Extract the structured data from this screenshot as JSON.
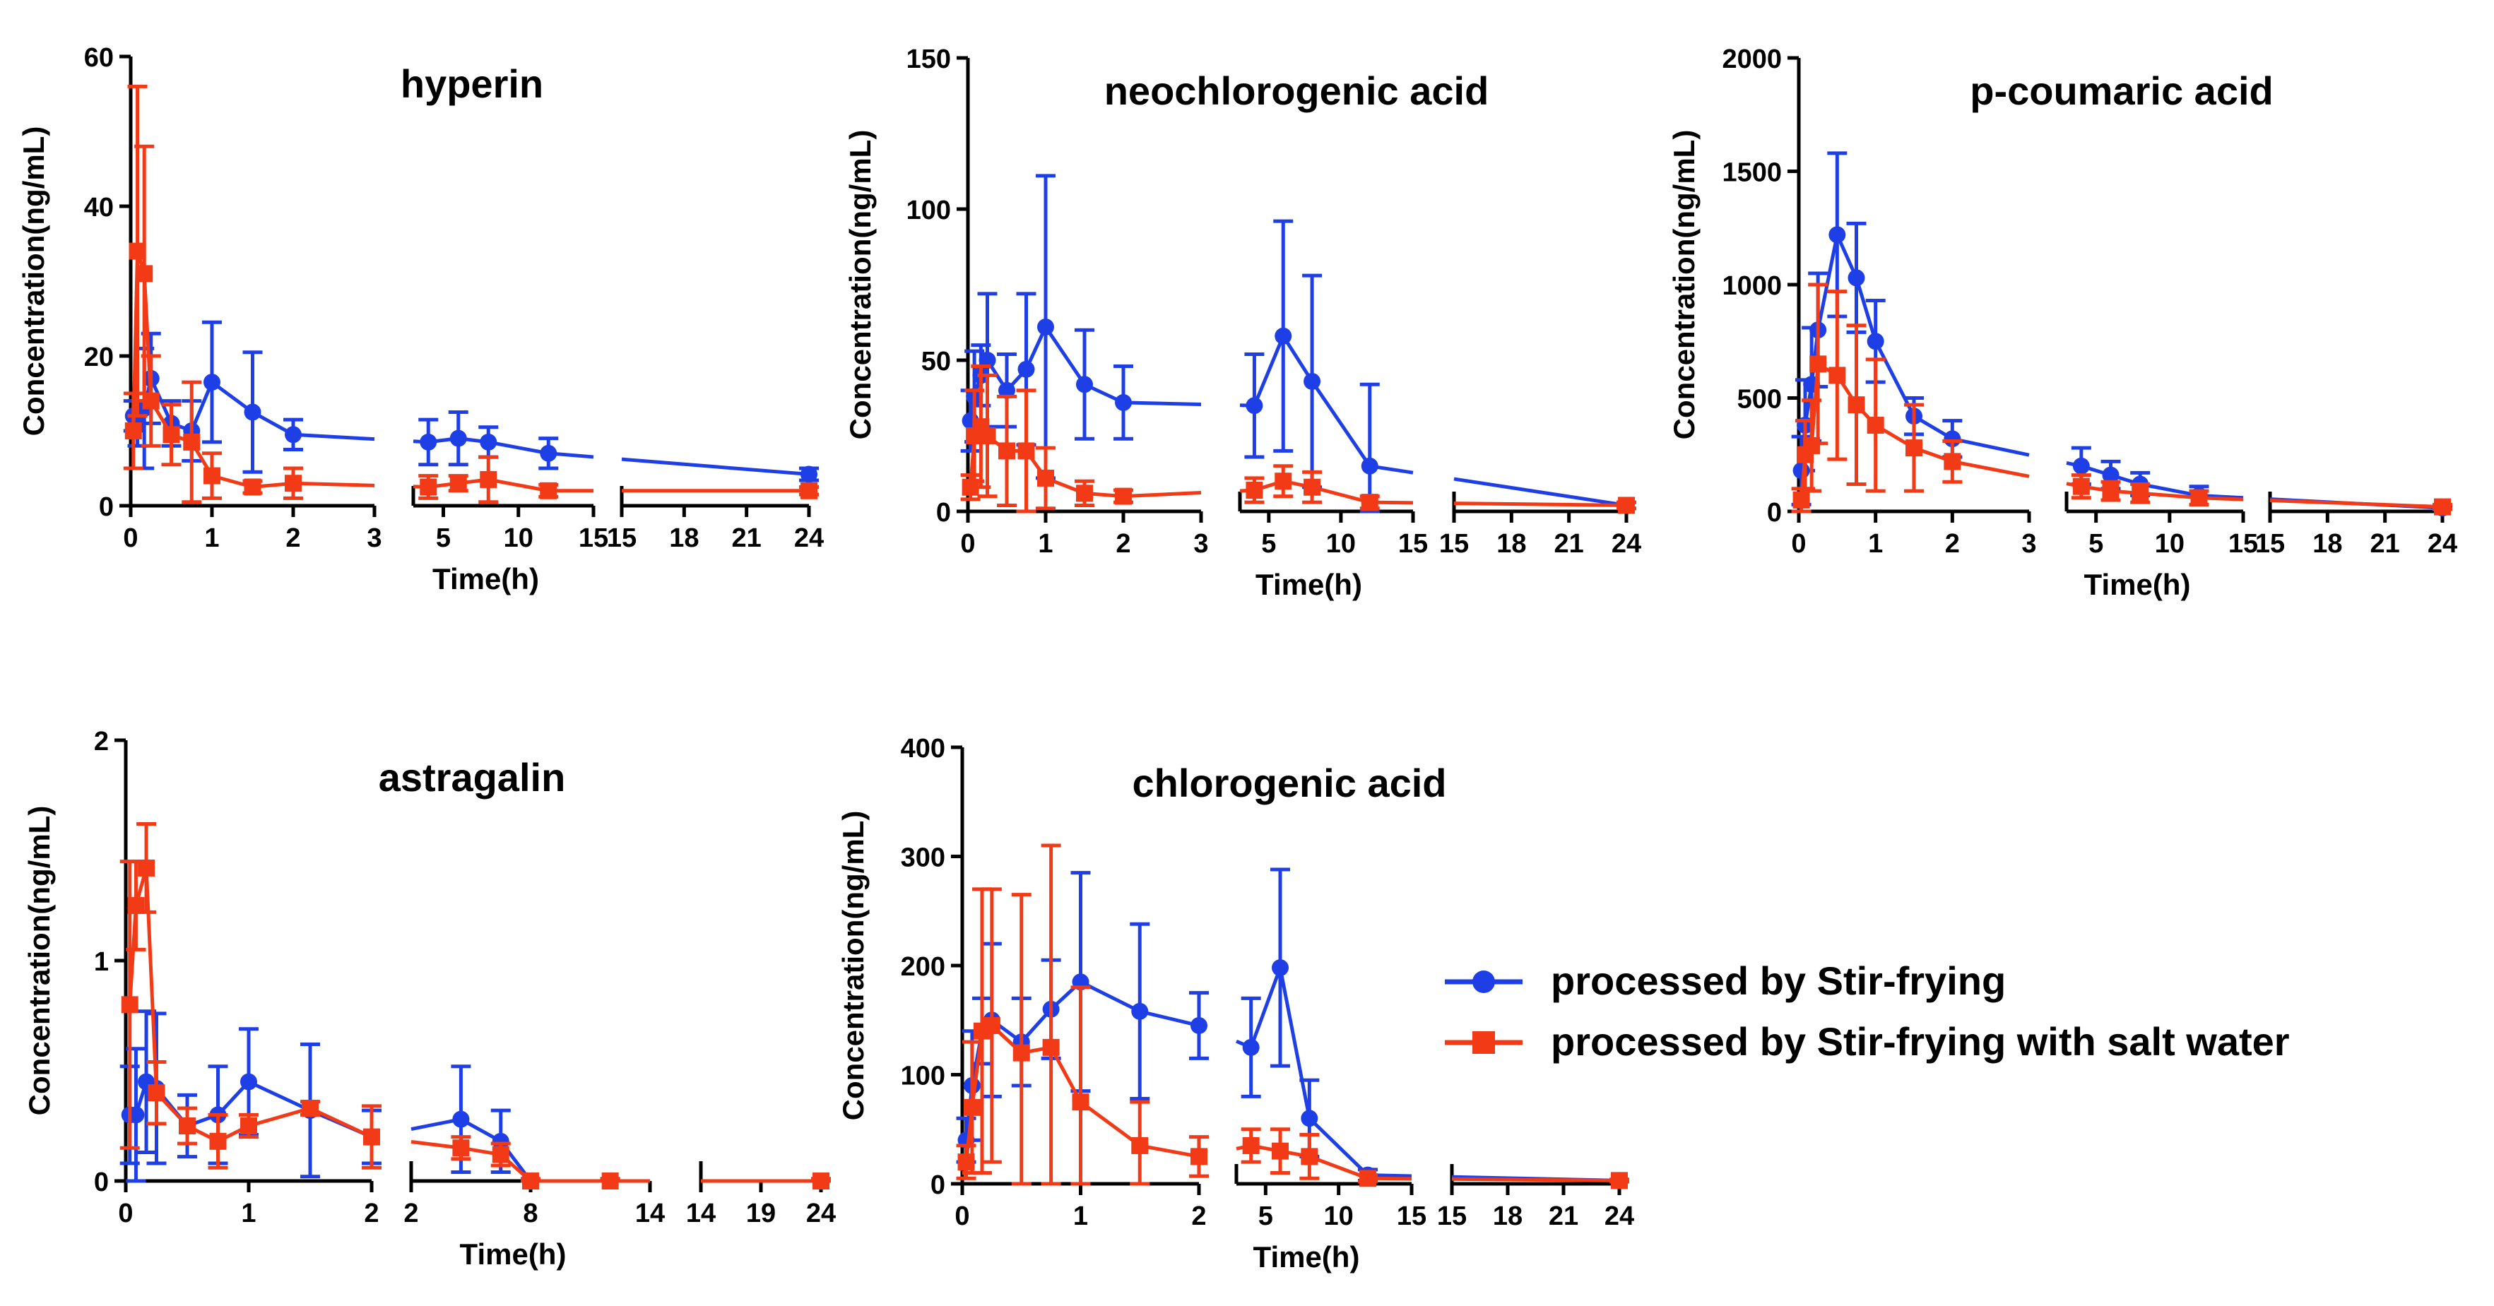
{
  "legend": {
    "entries": [
      {
        "label": "processed by Stir-frying",
        "color": "#1f3fe6",
        "marker": "circle"
      },
      {
        "label": "processed by Stir-frying with salt water",
        "color": "#f23a16",
        "marker": "square"
      }
    ]
  },
  "chart_data": [
    {
      "type": "line",
      "title": "hyperin",
      "xlabel": "Time(h)",
      "ylabel": "Concentration(ng/mL)",
      "ylim": [
        0,
        60
      ],
      "yticks": [
        0,
        20,
        40,
        60
      ],
      "segments": [
        {
          "range": [
            0,
            3
          ],
          "ticks": [
            0,
            1,
            2,
            3
          ]
        },
        {
          "range": [
            3,
            15
          ],
          "ticks": [
            5,
            10,
            15
          ]
        },
        {
          "range": [
            15,
            24
          ],
          "ticks": [
            15,
            18,
            21,
            24
          ]
        }
      ],
      "series": [
        {
          "name": "processed by Stir-frying",
          "color": "#1f3fe6",
          "marker": "circle",
          "x": [
            0.033,
            0.083,
            0.167,
            0.25,
            0.5,
            0.75,
            1,
            1.5,
            2,
            4,
            6,
            8,
            12,
            24
          ],
          "y": [
            12,
            11,
            13,
            17,
            11,
            10,
            16.5,
            12.5,
            9.5,
            8.5,
            9,
            8.5,
            7,
            4.2
          ],
          "err": [
            2,
            3,
            8,
            6,
            3,
            4,
            8,
            8,
            2,
            3,
            3.5,
            2,
            2,
            0.8
          ]
        },
        {
          "name": "processed by Stir-frying with salt water",
          "color": "#f23a16",
          "marker": "square",
          "x": [
            0.033,
            0.083,
            0.167,
            0.25,
            0.5,
            0.75,
            1,
            1.5,
            2,
            4,
            6,
            8,
            12,
            24
          ],
          "y": [
            10,
            34,
            31,
            14,
            9.5,
            8.5,
            4,
            2.5,
            3,
            2.5,
            3,
            3.5,
            2,
            2
          ],
          "err": [
            5,
            22,
            17,
            6,
            4,
            8,
            3,
            0.8,
            2,
            1.5,
            1,
            3,
            0.8,
            0.5
          ]
        }
      ]
    },
    {
      "type": "line",
      "title": "neochlorogenic acid",
      "xlabel": "Time(h)",
      "ylabel": "Concentration(ng/mL)",
      "ylim": [
        0,
        150
      ],
      "yticks": [
        0,
        50,
        100,
        150
      ],
      "segments": [
        {
          "range": [
            0,
            3
          ],
          "ticks": [
            0,
            1,
            2,
            3
          ]
        },
        {
          "range": [
            3,
            15
          ],
          "ticks": [
            5,
            10,
            15
          ]
        },
        {
          "range": [
            15,
            24
          ],
          "ticks": [
            15,
            18,
            21,
            24
          ]
        }
      ],
      "series": [
        {
          "name": "processed by Stir-frying",
          "color": "#1f3fe6",
          "marker": "circle",
          "x": [
            0.033,
            0.083,
            0.167,
            0.25,
            0.5,
            0.75,
            1,
            1.5,
            2,
            4,
            6,
            8,
            12,
            24
          ],
          "y": [
            30,
            38,
            45,
            50,
            40,
            47,
            61,
            42,
            36,
            35,
            58,
            43,
            15,
            2
          ],
          "err": [
            10,
            15,
            10,
            22,
            12,
            25,
            50,
            18,
            12,
            17,
            38,
            35,
            27,
            1
          ]
        },
        {
          "name": "processed by Stir-frying with salt water",
          "color": "#f23a16",
          "marker": "square",
          "x": [
            0.033,
            0.083,
            0.167,
            0.25,
            0.5,
            0.75,
            1,
            1.5,
            2,
            4,
            6,
            8,
            12,
            24
          ],
          "y": [
            8,
            25,
            28,
            25,
            20,
            20,
            11,
            6,
            5,
            7,
            10,
            8,
            3,
            2
          ],
          "err": [
            4,
            15,
            20,
            20,
            18,
            20,
            10,
            4,
            2,
            4,
            5,
            5,
            2,
            1
          ]
        }
      ]
    },
    {
      "type": "line",
      "title": "p-coumaric acid",
      "xlabel": "Time(h)",
      "ylabel": "Concentration(ng/mL)",
      "ylim": [
        0,
        2000
      ],
      "yticks": [
        0,
        500,
        1000,
        1500,
        2000
      ],
      "segments": [
        {
          "range": [
            0,
            3
          ],
          "ticks": [
            0,
            1,
            2,
            3
          ]
        },
        {
          "range": [
            3,
            15
          ],
          "ticks": [
            5,
            10,
            15
          ]
        },
        {
          "range": [
            15,
            24
          ],
          "ticks": [
            15,
            18,
            21,
            24
          ]
        }
      ],
      "series": [
        {
          "name": "processed by Stir-frying",
          "color": "#1f3fe6",
          "marker": "circle",
          "x": [
            0.033,
            0.083,
            0.167,
            0.25,
            0.5,
            0.75,
            1,
            1.5,
            2,
            4,
            6,
            8,
            12,
            24
          ],
          "y": [
            180,
            380,
            560,
            800,
            1220,
            1030,
            750,
            420,
            320,
            200,
            160,
            120,
            70,
            15
          ],
          "err": [
            150,
            200,
            250,
            250,
            360,
            240,
            180,
            80,
            80,
            80,
            60,
            50,
            40,
            5
          ]
        },
        {
          "name": "processed by Stir-frying with salt water",
          "color": "#f23a16",
          "marker": "square",
          "x": [
            0.033,
            0.083,
            0.167,
            0.25,
            0.5,
            0.75,
            1,
            1.5,
            2,
            4,
            6,
            8,
            12,
            24
          ],
          "y": [
            50,
            250,
            290,
            650,
            600,
            470,
            380,
            280,
            220,
            110,
            90,
            80,
            60,
            20
          ],
          "err": [
            50,
            150,
            200,
            350,
            370,
            350,
            290,
            190,
            90,
            50,
            40,
            40,
            30,
            10
          ]
        }
      ]
    },
    {
      "type": "line",
      "title": "astragalin",
      "xlabel": "Time(h)",
      "ylabel": "Concentration(ng/mL)",
      "ylim": [
        0,
        2
      ],
      "yticks": [
        0,
        1,
        2
      ],
      "segments": [
        {
          "range": [
            0,
            2
          ],
          "ticks": [
            0,
            1,
            2
          ]
        },
        {
          "range": [
            2,
            14
          ],
          "ticks": [
            2,
            8,
            14
          ]
        },
        {
          "range": [
            14,
            24
          ],
          "ticks": [
            14,
            19,
            24
          ]
        }
      ],
      "series": [
        {
          "name": "processed by Stir-frying",
          "color": "#1f3fe6",
          "marker": "circle",
          "x": [
            0.033,
            0.083,
            0.167,
            0.25,
            0.5,
            0.75,
            1,
            1.5,
            2,
            4.5,
            6.5,
            8,
            12,
            24
          ],
          "y": [
            0.3,
            0.3,
            0.45,
            0.42,
            0.25,
            0.3,
            0.45,
            0.32,
            0.2,
            0.28,
            0.18,
            0.0,
            0.0,
            0.0
          ],
          "err": [
            0.22,
            0.3,
            0.32,
            0.34,
            0.14,
            0.22,
            0.24,
            0.3,
            0.12,
            0.24,
            0.14,
            0.01,
            0.01,
            0.01
          ]
        },
        {
          "name": "processed by Stir-frying with salt water",
          "color": "#f23a16",
          "marker": "square",
          "x": [
            0.033,
            0.083,
            0.167,
            0.25,
            0.5,
            0.75,
            1,
            1.5,
            2,
            4.5,
            6.5,
            8,
            12,
            24
          ],
          "y": [
            0.8,
            1.25,
            1.42,
            0.4,
            0.25,
            0.18,
            0.25,
            0.33,
            0.2,
            0.15,
            0.12,
            0.0,
            0.0,
            0.0
          ],
          "err": [
            0.65,
            0.2,
            0.2,
            0.14,
            0.08,
            0.12,
            0.05,
            0.03,
            0.14,
            0.05,
            0.05,
            0.01,
            0.01,
            0.01
          ]
        }
      ]
    },
    {
      "type": "line",
      "title": "chlorogenic acid",
      "xlabel": "Time(h)",
      "ylabel": "Concentration(ng/mL)",
      "ylim": [
        0,
        400
      ],
      "yticks": [
        0,
        100,
        200,
        300,
        400
      ],
      "segments": [
        {
          "range": [
            0,
            2
          ],
          "ticks": [
            0,
            1,
            2
          ]
        },
        {
          "range": [
            3,
            15
          ],
          "ticks": [
            5,
            10,
            15
          ]
        },
        {
          "range": [
            15,
            24
          ],
          "ticks": [
            15,
            18,
            21,
            24
          ]
        }
      ],
      "series": [
        {
          "name": "processed by Stir-frying",
          "color": "#1f3fe6",
          "marker": "circle",
          "x": [
            0.033,
            0.083,
            0.167,
            0.25,
            0.5,
            0.75,
            1,
            1.5,
            2,
            4,
            6,
            8,
            12,
            24
          ],
          "y": [
            40,
            90,
            140,
            150,
            130,
            160,
            185,
            158,
            145,
            125,
            198,
            60,
            8,
            3
          ],
          "err": [
            20,
            50,
            30,
            70,
            40,
            45,
            100,
            80,
            30,
            45,
            90,
            35,
            5,
            1
          ]
        },
        {
          "name": "processed by Stir-frying with salt water",
          "color": "#f23a16",
          "marker": "square",
          "x": [
            0.033,
            0.083,
            0.167,
            0.25,
            0.5,
            0.75,
            1,
            1.5,
            2,
            4,
            6,
            8,
            12,
            24
          ],
          "y": [
            20,
            70,
            140,
            145,
            120,
            125,
            75,
            35,
            25,
            35,
            30,
            25,
            5,
            3
          ],
          "err": [
            15,
            60,
            130,
            125,
            145,
            185,
            105,
            40,
            18,
            15,
            20,
            20,
            3,
            1
          ]
        }
      ]
    }
  ]
}
